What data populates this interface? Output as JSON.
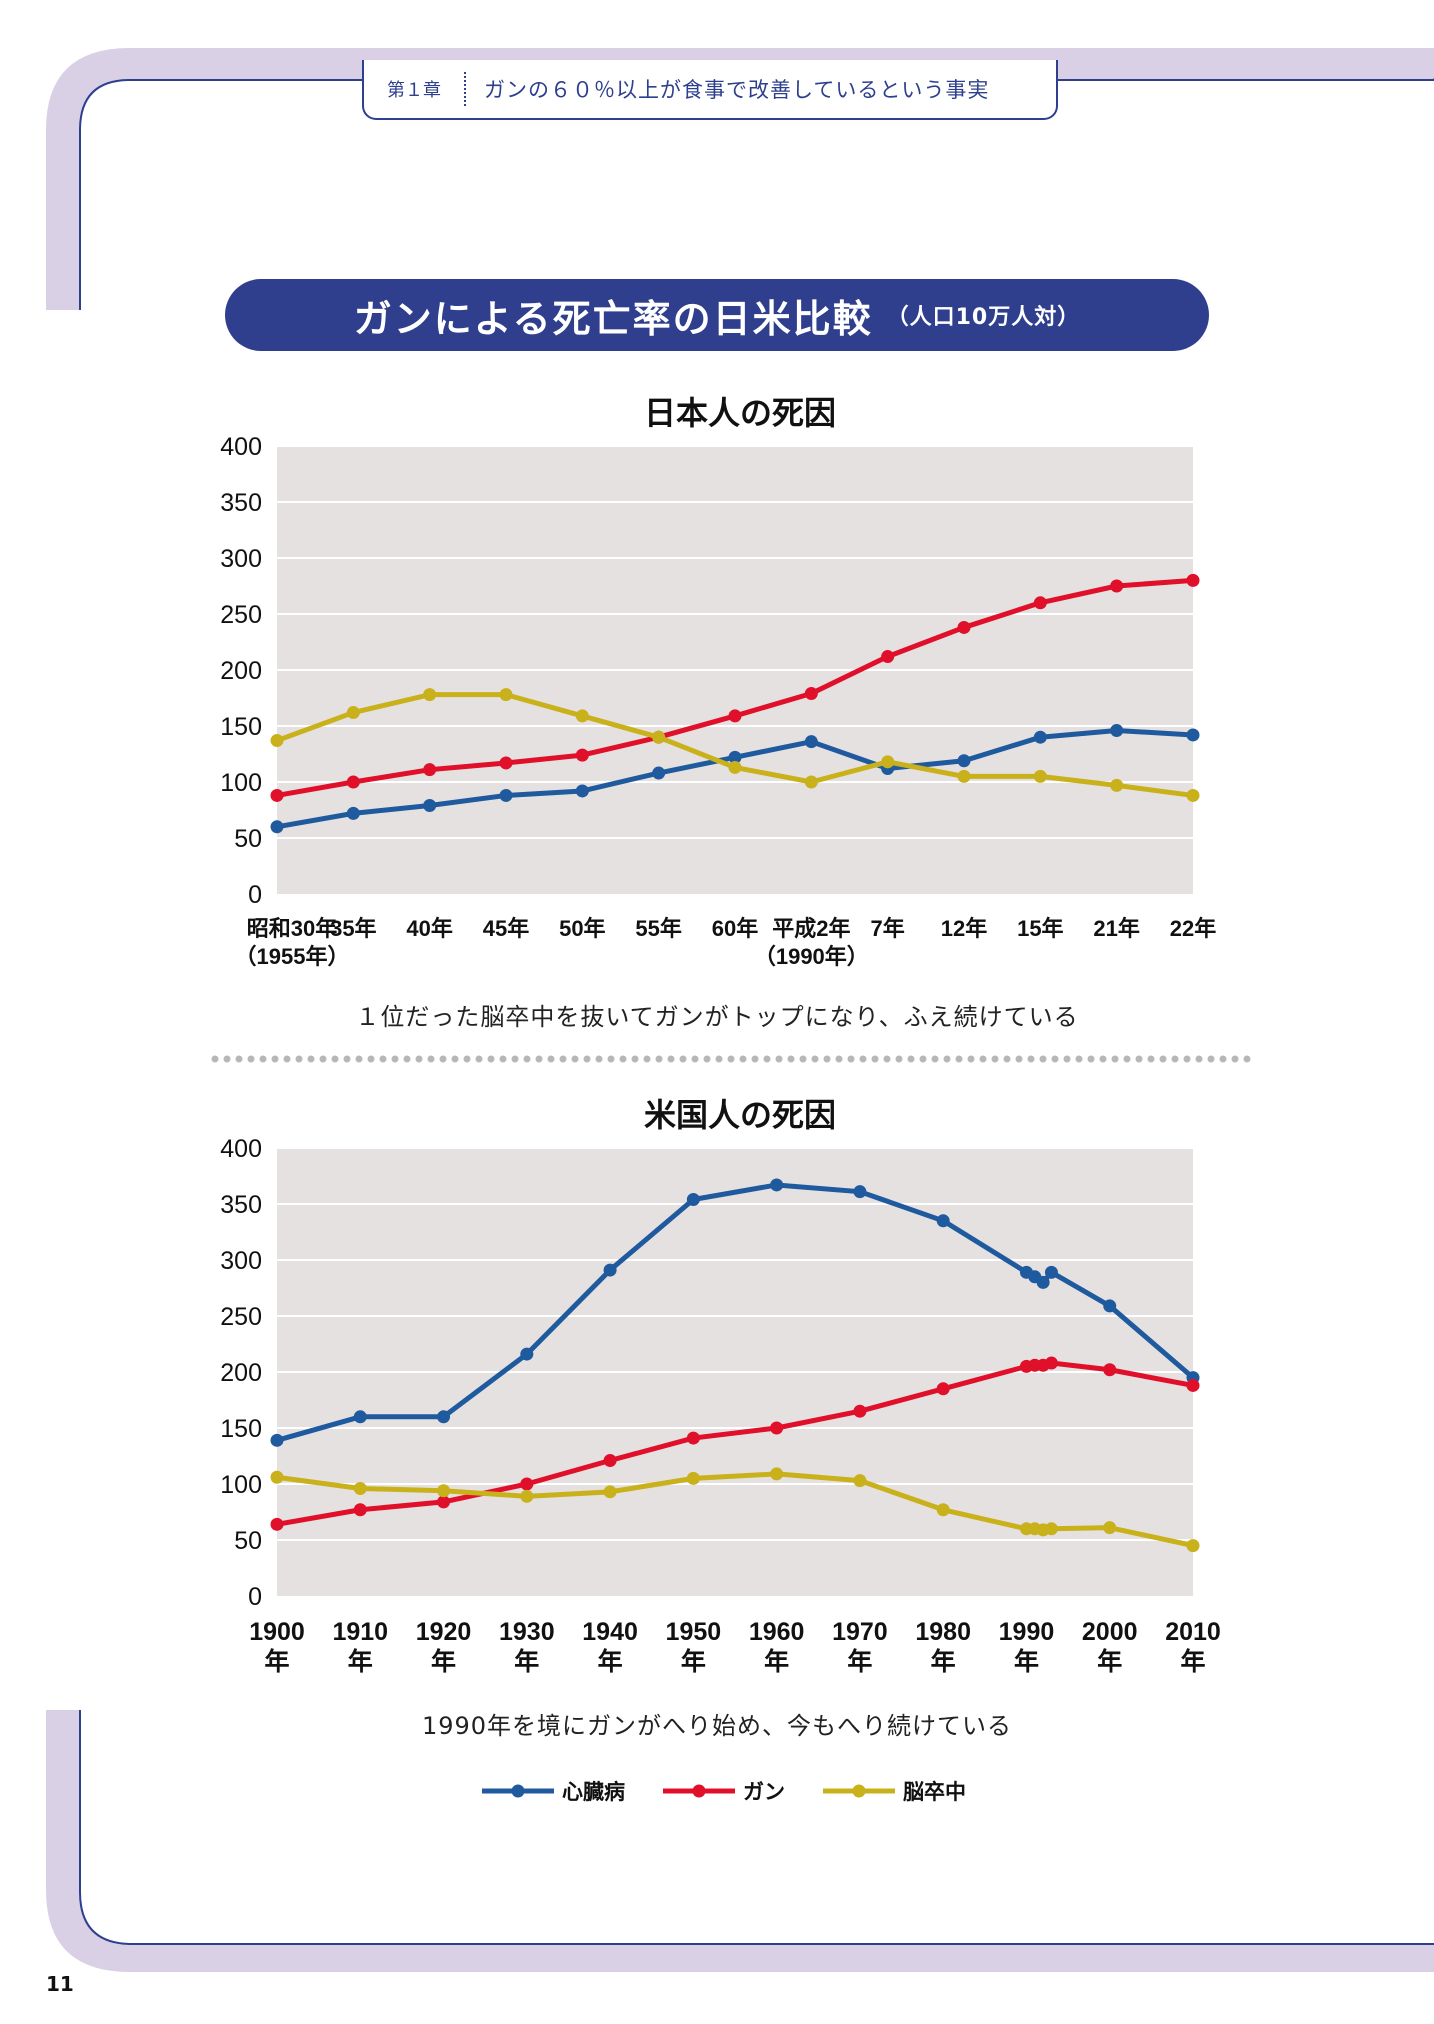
{
  "header": {
    "chapter_label": "第１章",
    "chapter_title": "ガンの６０％以上が食事で改善しているという事実"
  },
  "banner": {
    "title": "ガンによる死亡率の日米比較",
    "subtitle": "（人口10万人対）"
  },
  "colors": {
    "heart": "#1f5a9e",
    "cancer": "#e0102b",
    "stroke": "#c9b11c",
    "plot_bg": "#e6e1e1",
    "frame": "#d9d0e6",
    "banner": "#2f3f8d"
  },
  "chart_data": [
    {
      "id": "japan",
      "type": "line",
      "title": "日本人の死因",
      "ylim": [
        0,
        400
      ],
      "yticks": [
        0,
        50,
        100,
        150,
        200,
        250,
        300,
        350,
        400
      ],
      "grid": true,
      "categories": [
        [
          "昭和30年",
          "（1955年）"
        ],
        [
          "35年"
        ],
        [
          "40年"
        ],
        [
          "45年"
        ],
        [
          "50年"
        ],
        [
          "55年"
        ],
        [
          "60年"
        ],
        [
          "平成2年",
          "（1990年）"
        ],
        [
          "7年"
        ],
        [
          "12年"
        ],
        [
          "15年"
        ],
        [
          "21年"
        ],
        [
          "22年"
        ]
      ],
      "series": [
        {
          "key": "heart",
          "name": "心臓病",
          "values": [
            60,
            72,
            79,
            88,
            92,
            108,
            122,
            136,
            112,
            119,
            140,
            146,
            142
          ]
        },
        {
          "key": "cancer",
          "name": "ガン",
          "values": [
            88,
            100,
            111,
            117,
            124,
            140,
            159,
            179,
            212,
            238,
            260,
            275,
            280
          ]
        },
        {
          "key": "stroke",
          "name": "脳卒中",
          "values": [
            137,
            162,
            178,
            178,
            159,
            140,
            113,
            100,
            118,
            105,
            105,
            97,
            88
          ]
        }
      ]
    },
    {
      "id": "usa",
      "type": "line",
      "title": "米国人の死因",
      "ylim": [
        0,
        400
      ],
      "yticks": [
        0,
        50,
        100,
        150,
        200,
        250,
        300,
        350,
        400
      ],
      "grid": true,
      "categories": [
        [
          "1900",
          "年"
        ],
        [
          "1910",
          "年"
        ],
        [
          "1920",
          "年"
        ],
        [
          "1930",
          "年"
        ],
        [
          "1940",
          "年"
        ],
        [
          "1950",
          "年"
        ],
        [
          "1960",
          "年"
        ],
        [
          "1970",
          "年"
        ],
        [
          "1980",
          "年"
        ],
        [
          "1990",
          "年"
        ],
        [
          "2000",
          "年"
        ],
        [
          "2010",
          "年"
        ]
      ],
      "series": [
        {
          "key": "heart",
          "name": "心臓病",
          "x": [
            1900,
            1910,
            1920,
            1930,
            1940,
            1950,
            1960,
            1970,
            1980,
            1990,
            1991,
            1992,
            1993,
            2000,
            2010
          ],
          "values": [
            139,
            160,
            160,
            216,
            291,
            354,
            367,
            361,
            335,
            289,
            285,
            280,
            289,
            259,
            195
          ]
        },
        {
          "key": "cancer",
          "name": "ガン",
          "x": [
            1900,
            1910,
            1920,
            1930,
            1940,
            1950,
            1960,
            1970,
            1980,
            1990,
            1991,
            1992,
            1993,
            2000,
            2010
          ],
          "values": [
            64,
            77,
            84,
            100,
            121,
            141,
            150,
            165,
            185,
            205,
            206,
            206,
            208,
            202,
            188
          ]
        },
        {
          "key": "stroke",
          "name": "脳卒中",
          "x": [
            1900,
            1910,
            1920,
            1930,
            1940,
            1950,
            1960,
            1970,
            1980,
            1990,
            1991,
            1992,
            1993,
            2000,
            2010
          ],
          "values": [
            106,
            96,
            94,
            89,
            93,
            105,
            109,
            103,
            77,
            60,
            60,
            59,
            60,
            61,
            45
          ]
        }
      ]
    }
  ],
  "captions": {
    "japan": "１位だった脳卒中を抜いてガンがトップになり、ふえ続けている",
    "usa": "1990年を境にガンがへり始め、今もへり続けている"
  },
  "legend": [
    {
      "key": "heart",
      "label": "心臓病"
    },
    {
      "key": "cancer",
      "label": "ガン"
    },
    {
      "key": "stroke",
      "label": "脳卒中"
    }
  ],
  "page_number": "11"
}
